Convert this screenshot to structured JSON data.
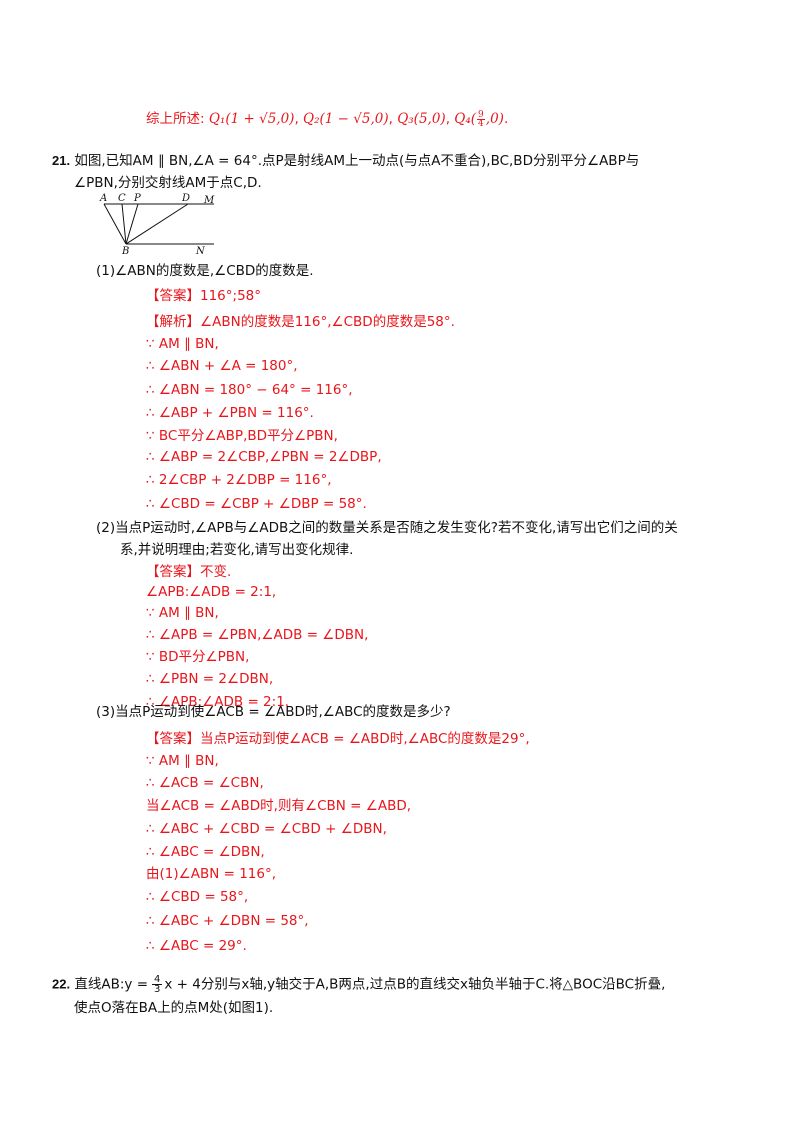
{
  "summary": {
    "prefix": "综上所述:",
    "q1": "Q₁(1 + √5,0)",
    "q2": "Q₂(1 − √5,0)",
    "q3": "Q₃(5,0)",
    "q4_label": "Q₄",
    "q4_num": "9",
    "q4_den": "4",
    "q4_tail": ",0)",
    "end": "."
  },
  "q21": {
    "number": "21.",
    "stem_a": "如图,已知AM ∥ BN,∠A = 64°.点P是射线AM上一动点(与点A不重合),BC,BD分别平分∠ABP与",
    "stem_b": "∠PBN,分别交射线AM于点C,D.",
    "figure_labels": {
      "A": "A",
      "C": "C",
      "P": "P",
      "D": "D",
      "M": "M",
      "B": "B",
      "N": "N"
    },
    "part1": {
      "num": "(1)",
      "question": "∠ABN的度数是,∠CBD的度数是.",
      "answer_tag": "【答案】",
      "answer": "116°;58°",
      "analysis": [
        "【解析】∠ABN的度数是116°,∠CBD的度数是58°.",
        "∵ AM ∥ BN,",
        "∴ ∠ABN + ∠A = 180°,",
        "∴ ∠ABN = 180° − 64° = 116°,",
        "∴ ∠ABP + ∠PBN = 116°.",
        "∵ BC平分∠ABP,BD平分∠PBN,",
        "∴ ∠ABP = 2∠CBP,∠PBN = 2∠DBP,",
        "∴ 2∠CBP + 2∠DBP = 116°,",
        "∴ ∠CBD = ∠CBP + ∠DBP = 58°."
      ]
    },
    "part2": {
      "num": "(2)",
      "question_a": "当点P运动时,∠APB与∠ADB之间的数量关系是否随之发生变化?若不变化,请写出它们之间的关",
      "question_b": "系,并说明理由;若变化,请写出变化规律.",
      "answer_tag": "【答案】",
      "answer": "不变.",
      "steps": [
        "∠APB:∠ADB = 2:1,",
        "∵ AM ∥ BN,",
        "∴ ∠APB = ∠PBN,∠ADB = ∠DBN,",
        "∵ BD平分∠PBN,",
        "∴ ∠PBN = 2∠DBN,",
        "∴ ∠APB:∠ADB = 2:1."
      ]
    },
    "part3": {
      "num": "(3)",
      "question": "当点P运动到使∠ACB = ∠ABD时,∠ABC的度数是多少?",
      "answer_tag": "【答案】",
      "answer": "当点P运动到使∠ACB = ∠ABD时,∠ABC的度数是29°,",
      "steps": [
        "∵ AM ∥ BN,",
        "∴ ∠ACB = ∠CBN,",
        "当∠ACB = ∠ABD时,则有∠CBN = ∠ABD,",
        "∴ ∠ABC + ∠CBD = ∠CBD + ∠DBN,",
        "∴ ∠ABC = ∠DBN,",
        "由(1)∠ABN = 116°,",
        "∴ ∠CBD = 58°,",
        "∴ ∠ABC + ∠DBN = 58°,",
        "∴ ∠ABC = 29°."
      ]
    }
  },
  "q22": {
    "number": "22.",
    "line_a_pre": "直线AB:y =",
    "frac_num": "4",
    "frac_den": "3",
    "line_a_post": "x + 4分别与x轴,y轴交于A,B两点,过点B的直线交x轴负半轴于C.将△BOC沿BC折叠,",
    "line_b": "使点O落在BA上的点M处(如图1)."
  }
}
